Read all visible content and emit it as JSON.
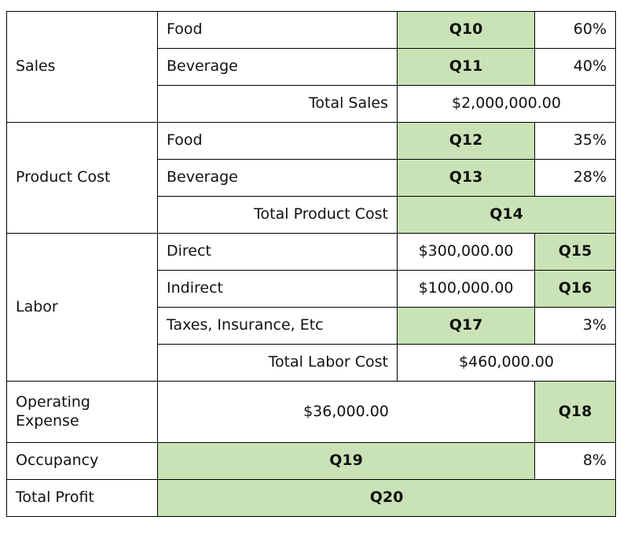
{
  "sections": [
    {
      "label": "Sales",
      "rows": [
        [
          "Food",
          "Q10",
          "60%"
        ],
        [
          "Beverage",
          "Q11",
          "40%"
        ],
        [
          "Total Sales",
          "$2,000,000.00"
        ]
      ]
    },
    {
      "label": "Product Cost",
      "rows": [
        [
          "Food",
          "Q12",
          "35%"
        ],
        [
          "Beverage",
          "Q13",
          "28%"
        ],
        [
          "Total Product Cost",
          "Q14"
        ]
      ]
    },
    {
      "label": "Labor",
      "rows": [
        [
          "Direct",
          "$300,000.00",
          "Q15"
        ],
        [
          "Indirect",
          "$100,000.00",
          "Q16"
        ],
        [
          "Taxes, Insurance, Etc",
          "Q17",
          "3%"
        ],
        [
          "Total Labor Cost",
          "$460,000.00"
        ]
      ]
    },
    {
      "label": "Operating Expense",
      "rows": [
        [
          "$36,000.00",
          "Q18"
        ]
      ]
    },
    {
      "label": "Occupancy",
      "rows": [
        [
          "Q19",
          "8%"
        ]
      ]
    },
    {
      "label": "Total Profit",
      "rows": [
        [
          "Q20"
        ]
      ]
    }
  ]
}
